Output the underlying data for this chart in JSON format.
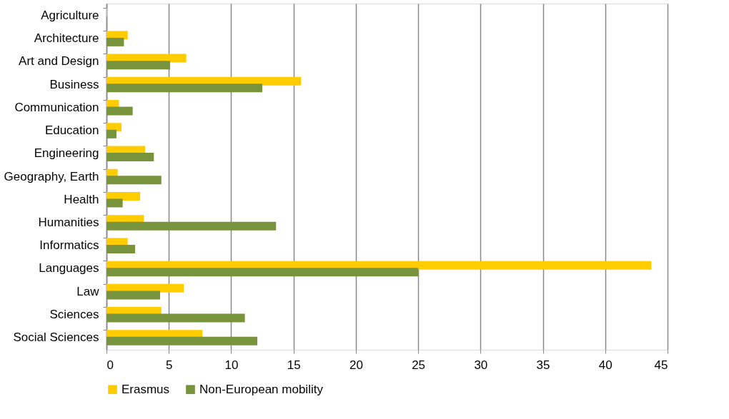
{
  "chart_data": {
    "type": "bar",
    "orientation": "horizontal",
    "categories": [
      "Agriculture",
      "Architecture",
      "Art and Design",
      "Business",
      "Communication",
      "Education",
      "Engineering",
      "Geography, Earth",
      "Health",
      "Humanities",
      "Informatics",
      "Languages",
      "Law",
      "Sciences",
      "Social Sciences"
    ],
    "series": [
      {
        "name": "Erasmus",
        "color": "#ffcc00",
        "values": [
          0.05,
          1.7,
          6.4,
          15.6,
          1.0,
          1.2,
          3.1,
          0.9,
          2.7,
          3.0,
          1.7,
          43.7,
          6.2,
          4.4,
          7.7
        ]
      },
      {
        "name": "Non-European mobility",
        "color": "#77933c",
        "values": [
          0,
          1.4,
          5.1,
          12.5,
          2.1,
          0.8,
          3.8,
          4.4,
          1.3,
          13.6,
          2.3,
          25.0,
          4.3,
          11.1,
          12.1
        ]
      }
    ],
    "xlim": [
      0,
      45
    ],
    "xticks": [
      0,
      5,
      10,
      15,
      20,
      25,
      30,
      35,
      40,
      45
    ],
    "grid": "x",
    "legend": "bottom"
  }
}
